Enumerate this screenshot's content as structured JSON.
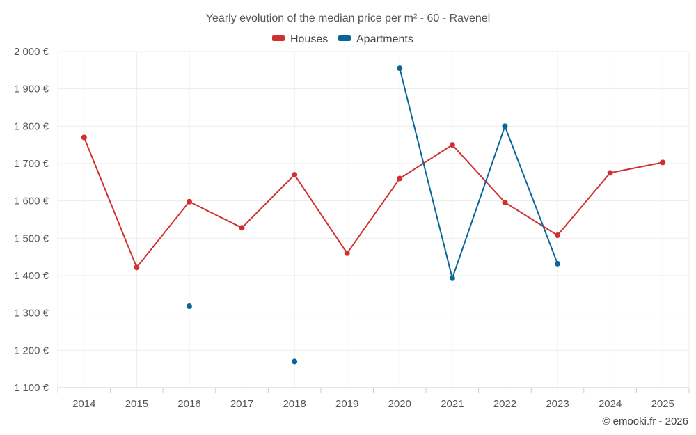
{
  "chart_data": {
    "type": "line",
    "title": "Yearly evolution of the median price per m² - 60 - Ravenel",
    "categories": [
      "2014",
      "2015",
      "2016",
      "2017",
      "2018",
      "2019",
      "2020",
      "2021",
      "2022",
      "2023",
      "2024",
      "2025"
    ],
    "ylim": [
      1100,
      2000
    ],
    "yticks": [
      1100,
      1200,
      1300,
      1400,
      1500,
      1600,
      1700,
      1800,
      1900,
      2000
    ],
    "ytick_labels": [
      "1 100 €",
      "1 200 €",
      "1 300 €",
      "1 400 €",
      "1 500 €",
      "1 600 €",
      "1 700 €",
      "1 800 €",
      "1 900 €",
      "2 000 €"
    ],
    "grid": true,
    "legend_position": "top-center",
    "series": [
      {
        "name": "Houses",
        "color": "#d03030",
        "values": [
          1770,
          1422,
          1598,
          1528,
          1670,
          1460,
          1660,
          1750,
          1596,
          1508,
          1675,
          1703
        ]
      },
      {
        "name": "Apartments",
        "color": "#0a6699",
        "values": [
          null,
          null,
          1318,
          null,
          1170,
          null,
          1955,
          1393,
          1800,
          1432,
          null,
          null
        ]
      }
    ],
    "credit": "© emooki.fr - 2026"
  }
}
